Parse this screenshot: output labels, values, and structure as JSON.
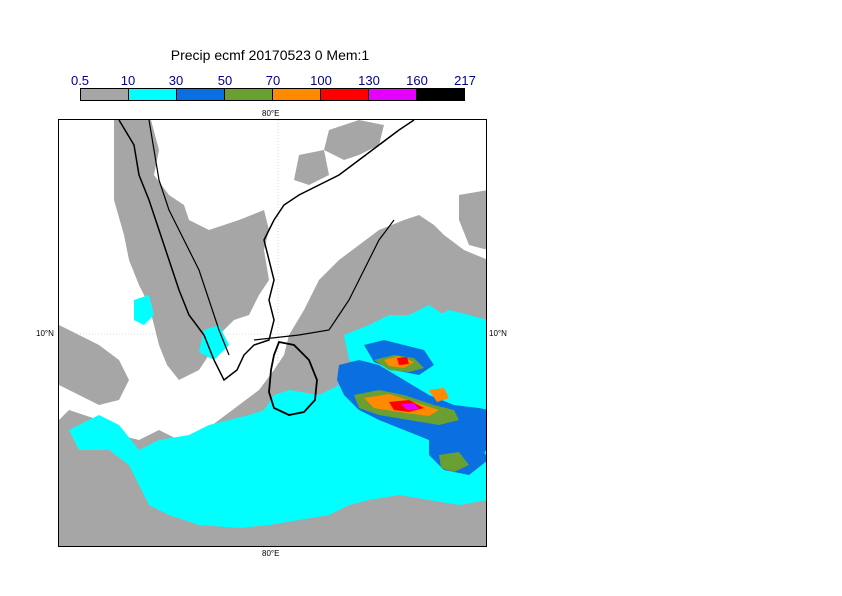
{
  "title": "Precip ecmf 20170523 0 Mem:1",
  "legend": {
    "ticks": [
      "0.5",
      "10",
      "30",
      "50",
      "70",
      "100",
      "130",
      "160",
      "217"
    ],
    "colors": [
      "#a6a6a6",
      "#00ffff",
      "#0a6fe0",
      "#6aa032",
      "#ff8a00",
      "#ff0000",
      "#e600ff",
      "#000000"
    ]
  },
  "axes": {
    "lon_top": "80°E",
    "lon_bottom": "80°E",
    "lat_left": "10°N",
    "lat_right": "10°N"
  }
}
